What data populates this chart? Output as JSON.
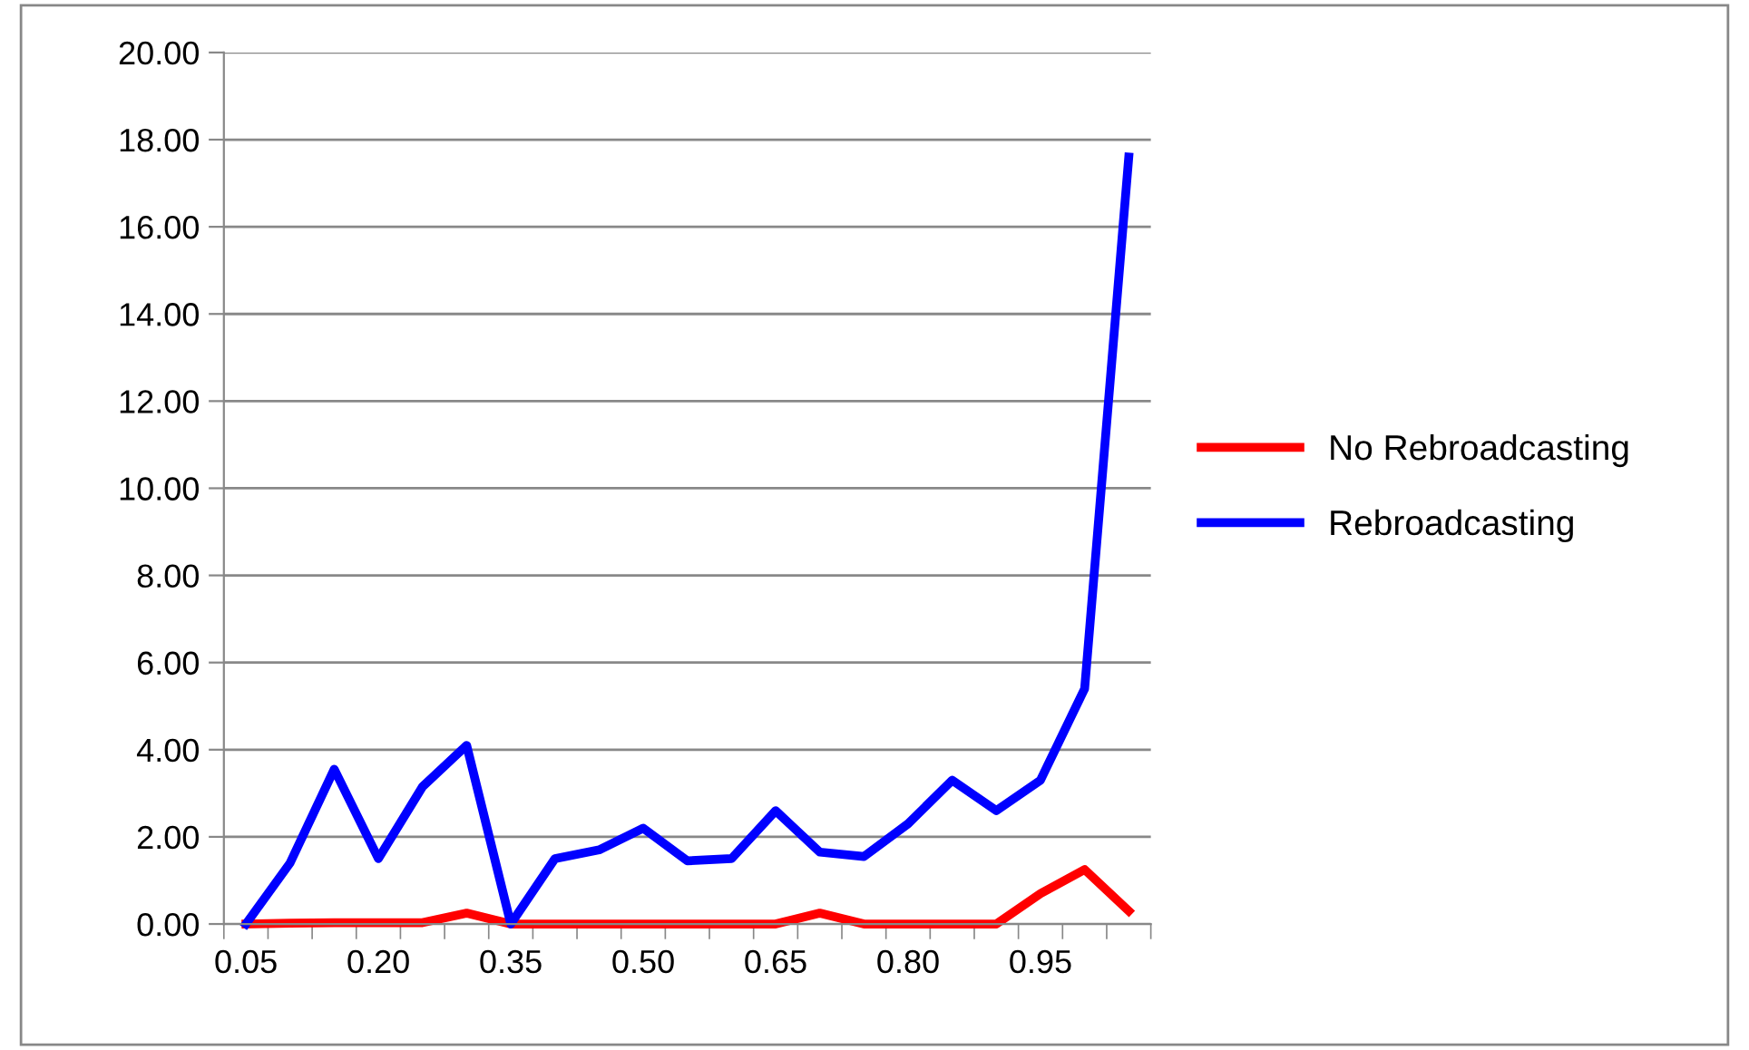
{
  "chart_data": {
    "type": "line",
    "categories": [
      "0.05",
      null,
      null,
      "0.20",
      null,
      null,
      "0.35",
      null,
      null,
      "0.50",
      null,
      null,
      "0.65",
      null,
      null,
      "0.80",
      null,
      null,
      "0.95",
      null,
      null
    ],
    "series": [
      {
        "name": "No Rebroadcasting",
        "color": "#ff0000",
        "values": [
          0,
          0.02,
          0.03,
          0.03,
          0.03,
          0.25,
          0,
          0,
          0,
          0,
          0,
          0,
          0,
          0.25,
          0,
          0,
          0,
          0,
          0.7,
          1.25,
          0.3
        ]
      },
      {
        "name": "Rebroadcasting",
        "color": "#0000ff",
        "values": [
          0,
          1.4,
          3.55,
          1.5,
          3.15,
          4.1,
          0,
          1.5,
          1.7,
          2.2,
          1.45,
          1.5,
          2.6,
          1.65,
          1.55,
          2.3,
          3.3,
          2.6,
          3.3,
          5.4,
          17.6
        ]
      }
    ],
    "ylim": [
      0,
      20
    ],
    "yticks": [
      {
        "value": 0,
        "label": "0.00"
      },
      {
        "value": 2,
        "label": "2.00"
      },
      {
        "value": 4,
        "label": "4.00"
      },
      {
        "value": 6,
        "label": "6.00"
      },
      {
        "value": 8,
        "label": "8.00"
      },
      {
        "value": 10,
        "label": "10.00"
      },
      {
        "value": 12,
        "label": "12.00"
      },
      {
        "value": 14,
        "label": "14.00"
      },
      {
        "value": 16,
        "label": "16.00"
      },
      {
        "value": 18,
        "label": "18.00"
      },
      {
        "value": 20,
        "label": "20.00"
      }
    ],
    "grid": "y",
    "legend": "right",
    "marker": "none",
    "line_style": "solid"
  }
}
